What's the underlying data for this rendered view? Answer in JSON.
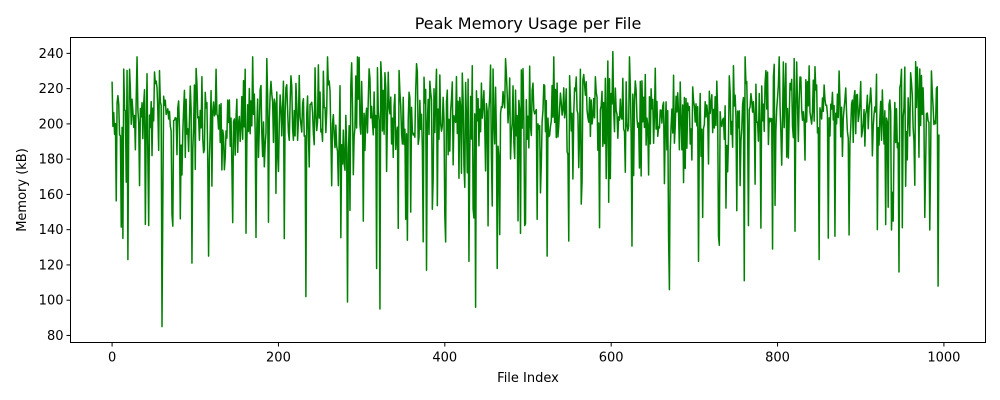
{
  "chart_data": {
    "type": "line",
    "title": "Peak Memory Usage per File",
    "xlabel": "File Index",
    "ylabel": "Memory (kB)",
    "xlim": [
      -50,
      1050
    ],
    "ylim": [
      76,
      249
    ],
    "xticks": [
      0,
      200,
      400,
      600,
      800,
      1000
    ],
    "yticks": [
      80,
      100,
      120,
      140,
      160,
      180,
      200,
      220,
      240
    ],
    "grid": false,
    "legend": "none",
    "series": [
      {
        "color": "#008000",
        "n_points": 995,
        "mean": 200,
        "stddev": 20,
        "max": 241,
        "min": 85,
        "x": [
          0,
          7,
          12,
          17,
          19,
          21,
          24,
          26,
          33,
          36,
          40,
          45,
          60,
          66,
          73,
          80,
          88,
          96,
          104,
          116,
          125,
          137,
          145,
          150,
          160,
          176,
          186,
          200,
          214,
          233,
          250,
          265,
          272,
          283,
          287,
          295,
          304,
          318,
          322,
          326,
          339,
          355,
          365,
          378,
          390,
          401,
          418,
          429,
          437,
          451,
          463,
          478,
          488,
          505,
          523,
          540,
          563,
          582,
          602,
          620,
          641,
          665,
          670,
          688,
          705,
          728,
          747,
          760,
          776,
          794,
          815,
          834,
          850,
          870,
          886,
          900,
          920,
          946,
          960,
          977,
          985,
          993
        ],
        "y": [
          224,
          216,
          198,
          167,
          123,
          231,
          214,
          198,
          165,
          212,
          143,
          205,
          85,
          207,
          142,
          213,
          181,
          121,
          204,
          125,
          231,
          196,
          144,
          214,
          231,
          181,
          237,
          173,
          212,
          102,
          218,
          200,
          165,
          99,
          222,
          238,
          185,
          118,
          95,
          219,
          210,
          134,
          219,
          117,
          231,
          133,
          215,
          122,
          96,
          207,
          118,
          226,
          145,
          219,
          125,
          212,
          231,
          218,
          241,
          196,
          228,
          197,
          106,
          215,
          122,
          207,
          233,
          111,
          201,
          129,
          223,
          225,
          123,
          206,
          137,
          224,
          140,
          116,
          229,
          147,
          230,
          108
        ]
      }
    ]
  }
}
